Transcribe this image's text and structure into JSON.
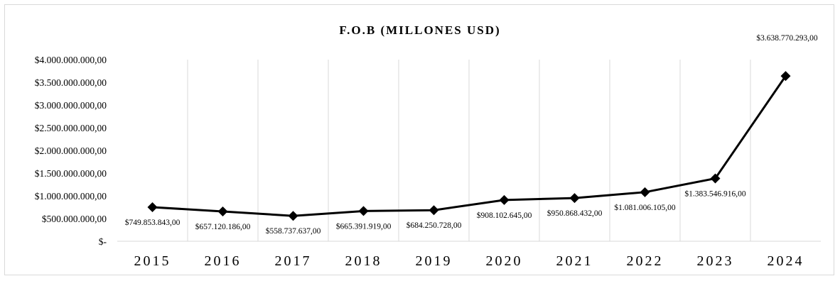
{
  "chart_data": {
    "type": "line",
    "title": "F.O.B (MILLONES USD)",
    "xlabel": "",
    "ylabel": "",
    "categories": [
      "2015",
      "2016",
      "2017",
      "2018",
      "2019",
      "2020",
      "2021",
      "2022",
      "2023",
      "2024"
    ],
    "values": [
      749853843,
      657120186,
      558737637,
      665391919,
      684250728,
      908102645,
      950868432,
      1081006105,
      1383546916,
      3638770293
    ],
    "data_labels": [
      "$749.853.843,00",
      "$657.120.186,00",
      "$558.737.637,00",
      "$665.391.919,00",
      "$684.250.728,00",
      "$908.102.645,00",
      "$950.868.432,00",
      "$1.081.006.105,00",
      "$1.383.546.916,00",
      "$3.638.770.293,00"
    ],
    "ylim": [
      0,
      4000000000
    ],
    "yticks": [
      0,
      500000000,
      1000000000,
      1500000000,
      2000000000,
      2500000000,
      3000000000,
      3500000000,
      4000000000
    ],
    "ytick_labels": [
      "$-",
      "$500.000.000,00",
      "$1.000.000.000,00",
      "$1.500.000.000,00",
      "$2.000.000.000,00",
      "$2.500.000.000,00",
      "$3.000.000.000,00",
      "$3.500.000.000,00",
      "$4.000.000.000,00"
    ],
    "grid": "vertical",
    "marker": "diamond",
    "line_color": "#000000",
    "grid_color": "#d9d9d9"
  }
}
